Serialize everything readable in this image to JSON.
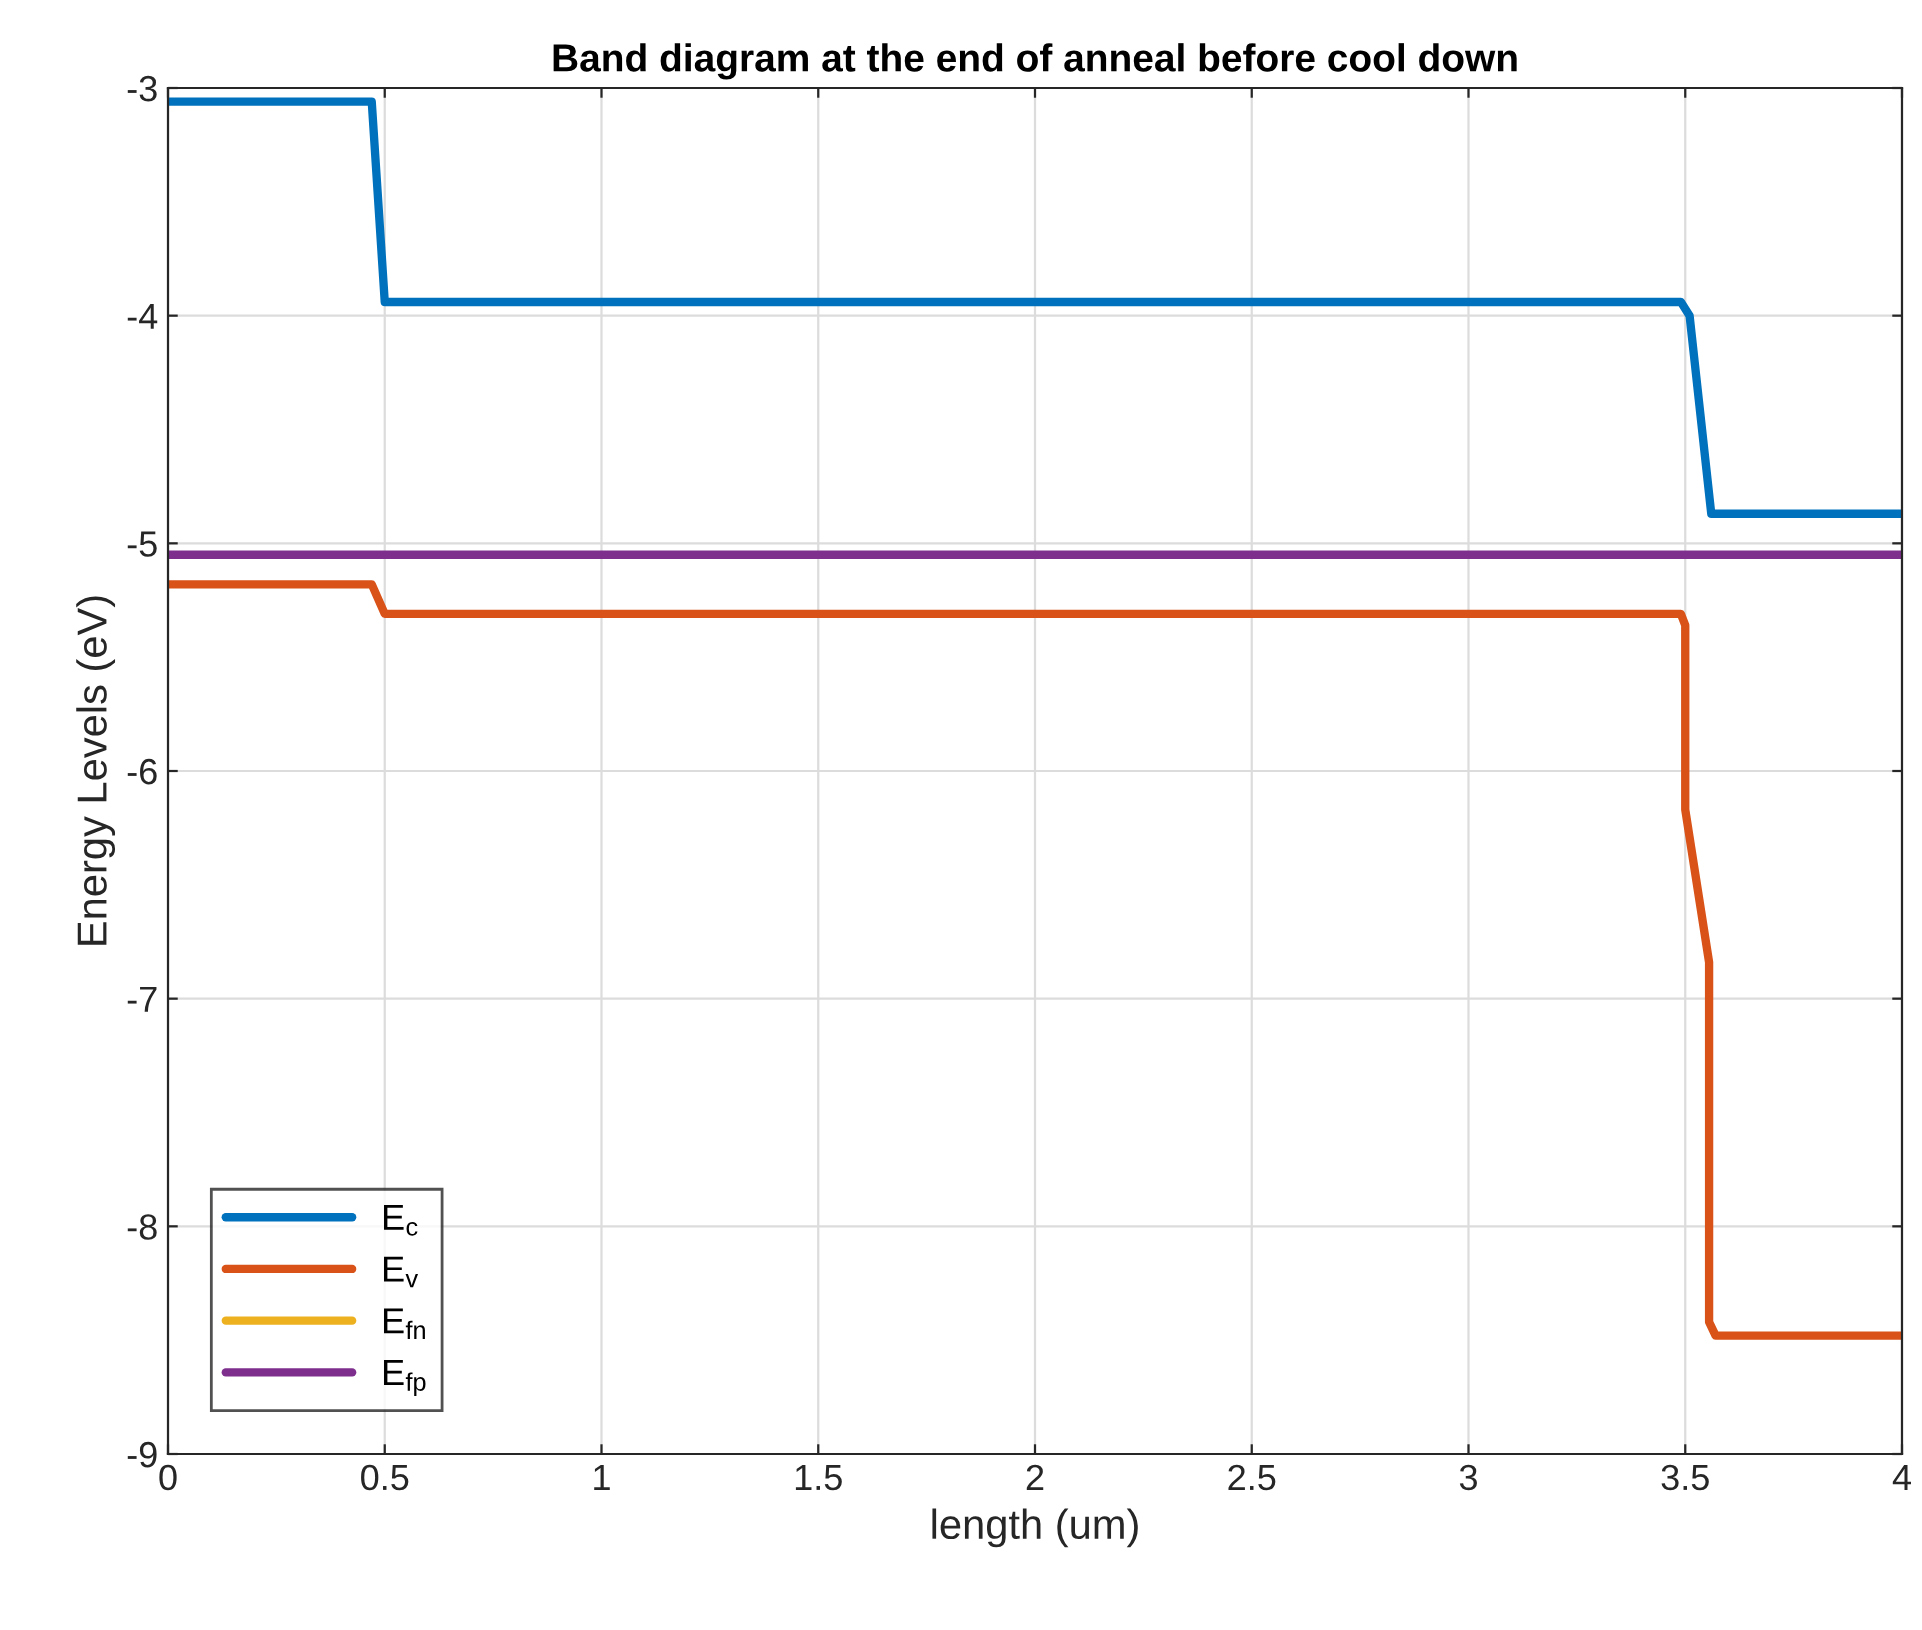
{
  "chart_data": {
    "type": "line",
    "title": "Band diagram at the end of anneal before cool down",
    "xlabel": "length (um)",
    "ylabel": "Energy Levels (eV)",
    "xlim": [
      0,
      4
    ],
    "ylim": [
      -9,
      -3
    ],
    "xticks": [
      0,
      0.5,
      1,
      1.5,
      2,
      2.5,
      3,
      3.5,
      4
    ],
    "yticks": [
      -9,
      -8,
      -7,
      -6,
      -5,
      -4,
      -3
    ],
    "grid": true,
    "legend": "bottom left",
    "series": [
      {
        "name": "E$_{c}$",
        "color": "#0072bd",
        "x": [
          0,
          0.47,
          0.5,
          3.49,
          3.51,
          3.56,
          4
        ],
        "values": [
          -3.06,
          -3.06,
          -3.94,
          -3.94,
          -4.0,
          -4.87,
          -4.87
        ]
      },
      {
        "name": "E$_{v}$",
        "color": "#d95319",
        "x": [
          0,
          0.47,
          0.5,
          3.49,
          3.5,
          3.5,
          3.555,
          3.555,
          3.57,
          4
        ],
        "values": [
          -5.18,
          -5.18,
          -5.31,
          -5.31,
          -5.36,
          -6.17,
          -6.84,
          -8.42,
          -8.48,
          -8.48
        ]
      },
      {
        "name": "E$_{fn}$",
        "color": "#edb120"
      },
      {
        "name": "E$_{fp}$",
        "color": "#7e2f8e",
        "x": [
          0,
          4
        ],
        "values": [
          -5.05,
          -5.05
        ]
      }
    ]
  }
}
